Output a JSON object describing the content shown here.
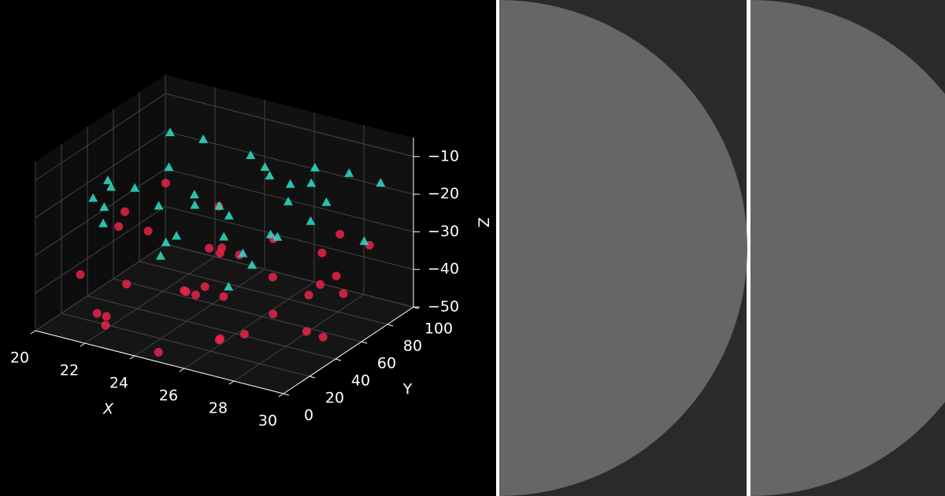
{
  "chart_data": {
    "type": "scatter3d",
    "xlabel": "X",
    "ylabel": "Y",
    "zlabel": "Z",
    "xlim": [
      20,
      30
    ],
    "xticks": [
      20,
      22,
      24,
      26,
      28,
      30
    ],
    "ylim": [
      0,
      100
    ],
    "yticks": [
      0,
      20,
      40,
      60,
      80,
      100
    ],
    "zlim": [
      -50,
      -5
    ],
    "zticks": [
      {
        "value": -50,
        "label": "−50"
      },
      {
        "value": -40,
        "label": "−40"
      },
      {
        "value": -30,
        "label": "−30"
      },
      {
        "value": -20,
        "label": "−20"
      },
      {
        "value": -10,
        "label": "−10"
      }
    ],
    "grid": true,
    "series": [
      {
        "color": "#e8234a",
        "marker": "circle",
        "x": [
          20.5,
          21.4,
          22.3,
          23.2,
          24.1,
          25.0,
          25.9,
          26.8,
          27.7,
          28.6,
          29.5,
          20.8,
          22.1,
          23.6,
          24.7,
          25.6,
          26.4,
          27.3,
          28.2,
          29.1,
          21.0,
          22.8,
          24.3,
          26.1,
          27.9,
          29.8,
          23.9,
          25.4,
          21.7,
          28.4,
          20.2,
          26.7,
          24.5,
          22.6,
          27.1
        ],
        "y": [
          25,
          60,
          10,
          80,
          45,
          35,
          70,
          15,
          90,
          55,
          40,
          85,
          30,
          65,
          5,
          50,
          20,
          95,
          75,
          35,
          45,
          90,
          60,
          25,
          10,
          70,
          40,
          80,
          15,
          50,
          65,
          55,
          30,
          5,
          85
        ],
        "z": [
          -40,
          -35,
          -47,
          -30,
          -44,
          -38,
          -42,
          -33,
          -48,
          -36,
          -45,
          -29,
          -41,
          -37,
          -49,
          -32,
          -46,
          -34,
          -39,
          -43,
          -31,
          -44,
          -36,
          -48,
          -40,
          -27,
          -42,
          -35,
          -46,
          -38,
          -33,
          -47,
          -39,
          -43,
          -37
        ]
      },
      {
        "color": "#2de0c8",
        "marker": "triangle",
        "x": [
          21.2,
          22.5,
          23.1,
          24.0,
          24.8,
          25.5,
          26.3,
          27.0,
          27.8,
          28.5,
          29.2,
          20.6,
          21.8,
          22.9,
          23.7,
          25.1,
          26.0,
          26.9,
          28.1,
          29.5,
          20.3,
          22.0,
          24.4,
          25.9,
          27.4,
          28.8,
          21.5,
          23.4,
          26.6,
          29.0,
          24.9,
          22.7,
          27.6,
          25.3,
          20.9
        ],
        "y": [
          30,
          55,
          70,
          20,
          85,
          40,
          60,
          15,
          75,
          50,
          90,
          65,
          10,
          45,
          95,
          25,
          80,
          35,
          5,
          60,
          50,
          20,
          65,
          10,
          45,
          85,
          75,
          30,
          55,
          40,
          15,
          90,
          70,
          95,
          35
        ],
        "z": [
          -22,
          -15,
          -10,
          -28,
          -18,
          -25,
          -12,
          -30,
          -20,
          -8,
          -16,
          -26,
          -14,
          -32,
          -19,
          -11,
          -24,
          -29,
          -17,
          -6,
          -21,
          -13,
          -27,
          -9,
          -23,
          -31,
          -12,
          -18,
          -26,
          -15,
          -20,
          -33,
          -10,
          -24,
          -28
        ]
      }
    ]
  }
}
